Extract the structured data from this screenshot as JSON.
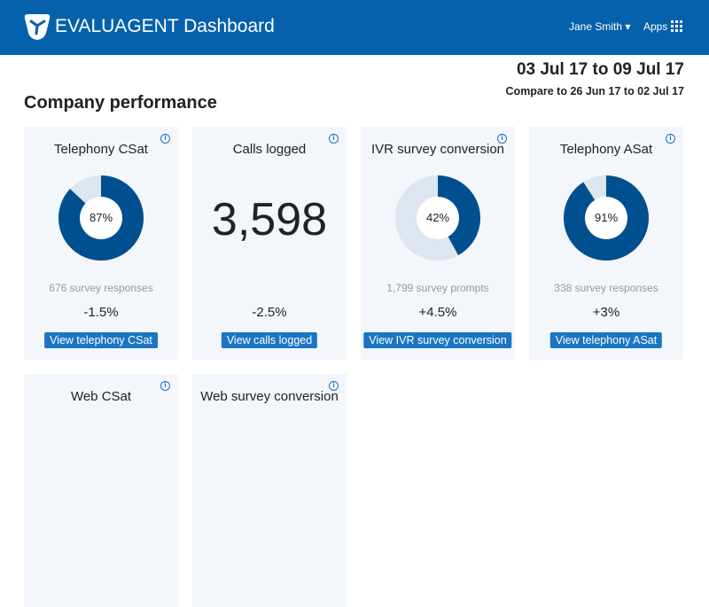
{
  "header": {
    "brand": "EVALUAGENT Dashboard",
    "user": "Jane Smith",
    "apps": "Apps"
  },
  "period": {
    "range": "03 Jul 17 to 09 Jul 17",
    "compare": "Compare to 26 Jun 17 to 02 Jul 17"
  },
  "page_title": "Company performance",
  "colors": {
    "header": "#0561ac",
    "donut_fill": "#004f8e",
    "donut_track": "#dde6ee",
    "button": "#1b75c2"
  },
  "cards": [
    {
      "title": "Telephony CSat",
      "type": "donut",
      "value": 87,
      "pct": "87%",
      "sub": "676 survey responses",
      "delta": "-1.5%",
      "button": "View telephony CSat"
    },
    {
      "title": "Calls logged",
      "type": "number",
      "big": "3,598",
      "delta": "-2.5%",
      "button": "View calls logged"
    },
    {
      "title": "IVR survey conversion",
      "type": "donut",
      "value": 42,
      "pct": "42%",
      "sub": "1,799 survey prompts",
      "delta": "+4.5%",
      "button": "View IVR survey conversion"
    },
    {
      "title": "Telephony ASat",
      "type": "donut",
      "value": 91,
      "pct": "91%",
      "sub": "338 survey responses",
      "delta": "+3%",
      "button": "View telephony ASat"
    },
    {
      "title": "Web CSat"
    },
    {
      "title": "Web survey conversion"
    }
  ]
}
